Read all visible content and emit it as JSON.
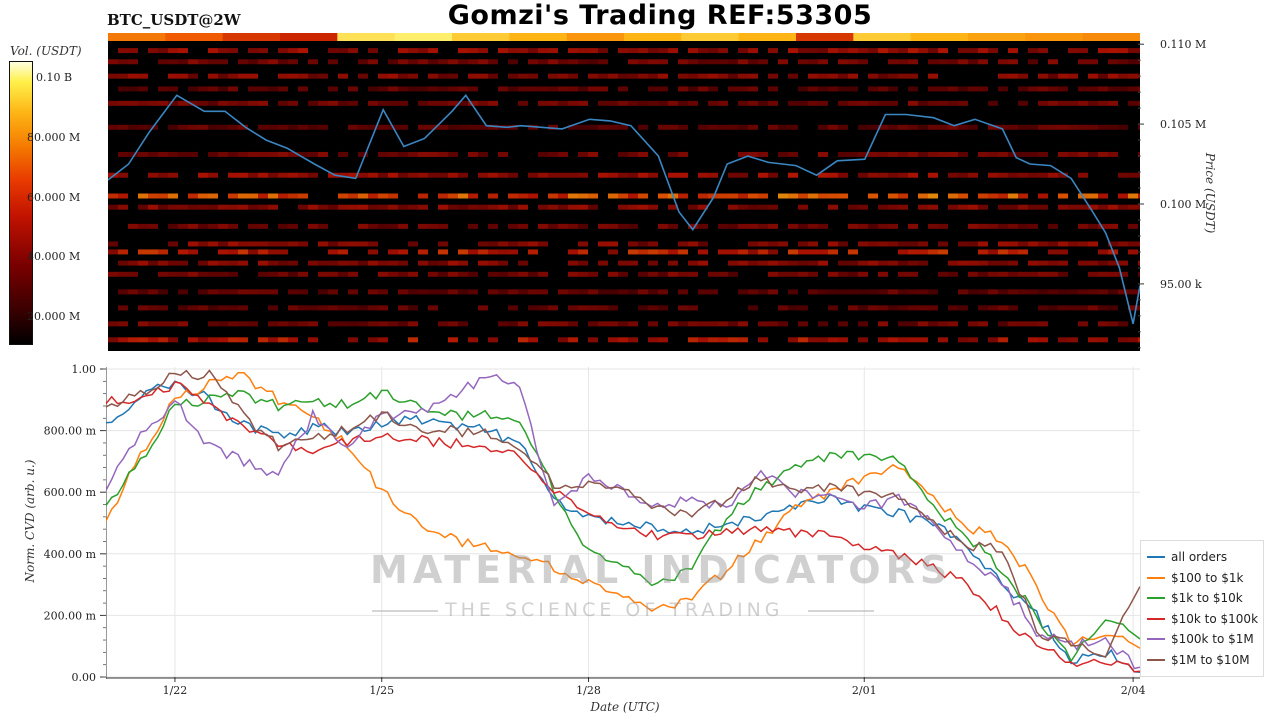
{
  "header": {
    "title": "Gomzi's Trading REF:53305",
    "symbol": "BTC_USDT@2W"
  },
  "colorbar": {
    "label": "Vol. (USDT)",
    "ticks": [
      "0.10 B",
      "80.000 M",
      "60.000 M",
      "40.000 M",
      "20.000 M"
    ]
  },
  "watermark": {
    "line1": "MATERIAL INDICATORS",
    "line2": "THE SCIENCE OF TRADING"
  },
  "colors": {
    "price_line": "#3a86c2",
    "heat_background": "#000000"
  },
  "chart_data": [
    {
      "type": "heatmap",
      "name": "orderbook-liquidity-heatmap",
      "ylabel": "Price (USDT)",
      "ylim": [
        90800,
        110200
      ],
      "yticks": [
        {
          "value": 110000,
          "label": "0.110 M"
        },
        {
          "value": 105000,
          "label": "0.105 M"
        },
        {
          "value": 100000,
          "label": "0.100 M"
        },
        {
          "value": 95000,
          "label": "95.00 k"
        }
      ],
      "colorbar_range": [
        0,
        105000000
      ],
      "price_series": {
        "x": [
          0,
          0.3,
          0.6,
          1.0,
          1.4,
          1.7,
          2.0,
          2.3,
          2.6,
          3.0,
          3.3,
          3.6,
          4.0,
          4.3,
          4.6,
          5.0,
          5.2,
          5.5,
          5.8,
          6.0,
          6.3,
          6.6,
          7.0,
          7.3,
          7.6,
          8.0,
          8.3,
          8.5,
          8.8,
          9.0,
          9.3,
          9.6,
          10.0,
          10.3,
          10.6,
          11.0,
          11.3,
          11.6,
          12.0,
          12.3,
          12.6,
          13.0,
          13.2,
          13.4,
          13.7,
          14.0,
          14.3,
          14.5,
          14.7,
          14.9,
          15.0
        ],
        "y": [
          101500,
          102500,
          104500,
          106800,
          105800,
          105800,
          104800,
          104000,
          103500,
          102500,
          101800,
          101600,
          105900,
          103600,
          104100,
          105800,
          106800,
          104900,
          104800,
          104900,
          104800,
          104700,
          105300,
          105200,
          104900,
          103000,
          99500,
          98400,
          100400,
          102500,
          103000,
          102600,
          102400,
          101800,
          102700,
          102800,
          105600,
          105600,
          105400,
          104900,
          105300,
          104700,
          102900,
          102500,
          102400,
          101600,
          99600,
          98200,
          96000,
          92500,
          94900
        ]
      },
      "liquidity_bands": [
        {
          "price": 109600,
          "intensity": 0.45
        },
        {
          "price": 108900,
          "intensity": 0.35
        },
        {
          "price": 108000,
          "intensity": 0.4
        },
        {
          "price": 107200,
          "intensity": 0.3
        },
        {
          "price": 106300,
          "intensity": 0.35
        },
        {
          "price": 104800,
          "intensity": 0.3
        },
        {
          "price": 103100,
          "intensity": 0.35
        },
        {
          "price": 101800,
          "intensity": 0.45
        },
        {
          "price": 100500,
          "intensity": 0.7
        },
        {
          "price": 99800,
          "intensity": 0.4
        },
        {
          "price": 98600,
          "intensity": 0.35
        },
        {
          "price": 97500,
          "intensity": 0.4
        },
        {
          "price": 97000,
          "intensity": 0.55
        },
        {
          "price": 96300,
          "intensity": 0.4
        },
        {
          "price": 95600,
          "intensity": 0.35
        },
        {
          "price": 94500,
          "intensity": 0.3
        },
        {
          "price": 93500,
          "intensity": 0.3
        },
        {
          "price": 92500,
          "intensity": 0.35
        },
        {
          "price": 91500,
          "intensity": 0.5
        }
      ],
      "top_volume_strip": [
        0.75,
        0.7,
        0.6,
        0.55,
        0.95,
        0.98,
        0.9,
        0.85,
        0.8,
        0.85,
        0.9,
        0.85,
        0.6,
        0.9,
        0.85,
        0.82,
        0.8,
        0.78
      ]
    },
    {
      "type": "line",
      "name": "normalized-cvd",
      "title": "",
      "xlabel": "Date (UTC)",
      "ylabel": "Norm. CVD (arb. u.)",
      "ylim": [
        0,
        1
      ],
      "xlim": [
        0,
        15
      ],
      "grid": true,
      "legend": "right",
      "yticks": [
        {
          "value": 0,
          "label": "0.00"
        },
        {
          "value": 0.2,
          "label": "200.00 m"
        },
        {
          "value": 0.4,
          "label": "400.00 m"
        },
        {
          "value": 0.6,
          "label": "600.00 m"
        },
        {
          "value": 0.8,
          "label": "800.00 m"
        },
        {
          "value": 1.0,
          "label": "1.00"
        }
      ],
      "xticks": [
        {
          "value": 1,
          "label": "1/22"
        },
        {
          "value": 4,
          "label": "1/25"
        },
        {
          "value": 7,
          "label": "1/28"
        },
        {
          "value": 11,
          "label": "2/01"
        },
        {
          "value": 14.9,
          "label": "2/04"
        }
      ],
      "x": [
        0,
        0.5,
        1,
        1.5,
        2,
        2.5,
        3,
        3.5,
        4,
        4.5,
        5,
        5.5,
        6,
        6.5,
        7,
        7.5,
        8,
        8.5,
        9,
        9.5,
        10,
        10.5,
        11,
        11.5,
        12,
        12.5,
        13,
        13.5,
        14,
        14.5,
        15
      ],
      "series": [
        {
          "name": "all orders",
          "color": "#1f77b4",
          "values": [
            0.83,
            0.91,
            0.96,
            0.9,
            0.82,
            0.78,
            0.81,
            0.8,
            0.82,
            0.84,
            0.82,
            0.8,
            0.76,
            0.58,
            0.52,
            0.5,
            0.48,
            0.47,
            0.5,
            0.52,
            0.55,
            0.58,
            0.55,
            0.53,
            0.5,
            0.42,
            0.3,
            0.2,
            0.05,
            0.08,
            0.02
          ]
        },
        {
          "name": "$100 to $1k",
          "color": "#ff7f0e",
          "values": [
            0.5,
            0.72,
            0.9,
            0.95,
            0.98,
            0.9,
            0.85,
            0.75,
            0.6,
            0.5,
            0.45,
            0.42,
            0.4,
            0.35,
            0.3,
            0.25,
            0.22,
            0.25,
            0.35,
            0.45,
            0.55,
            0.6,
            0.65,
            0.68,
            0.58,
            0.48,
            0.45,
            0.3,
            0.1,
            0.15,
            0.1
          ]
        },
        {
          "name": "$1k to $10k",
          "color": "#2ca02c",
          "values": [
            0.55,
            0.7,
            0.88,
            0.9,
            0.92,
            0.88,
            0.9,
            0.88,
            0.92,
            0.88,
            0.85,
            0.85,
            0.84,
            0.6,
            0.4,
            0.35,
            0.3,
            0.35,
            0.52,
            0.62,
            0.68,
            0.72,
            0.72,
            0.7,
            0.55,
            0.45,
            0.35,
            0.2,
            0.05,
            0.2,
            0.13
          ]
        },
        {
          "name": "$10k to $100k",
          "color": "#d62728",
          "values": [
            0.9,
            0.9,
            0.95,
            0.88,
            0.82,
            0.76,
            0.74,
            0.76,
            0.78,
            0.77,
            0.76,
            0.75,
            0.72,
            0.6,
            0.52,
            0.48,
            0.46,
            0.45,
            0.48,
            0.48,
            0.47,
            0.46,
            0.42,
            0.4,
            0.35,
            0.3,
            0.2,
            0.1,
            0.05,
            0.05,
            0.02
          ]
        },
        {
          "name": "$100k to $1M",
          "color": "#9467bd",
          "values": [
            0.62,
            0.78,
            0.9,
            0.75,
            0.7,
            0.65,
            0.85,
            0.75,
            0.85,
            0.86,
            0.9,
            0.98,
            0.95,
            0.55,
            0.65,
            0.6,
            0.55,
            0.58,
            0.55,
            0.66,
            0.6,
            0.58,
            0.55,
            0.58,
            0.5,
            0.38,
            0.3,
            0.15,
            0.1,
            0.12,
            0.02
          ]
        },
        {
          "name": "$1M to $10M",
          "color": "#8c564b",
          "values": [
            0.87,
            0.92,
            0.98,
            0.98,
            0.85,
            0.75,
            0.78,
            0.8,
            0.85,
            0.8,
            0.8,
            0.79,
            0.75,
            0.62,
            0.62,
            0.6,
            0.55,
            0.52,
            0.58,
            0.65,
            0.6,
            0.62,
            0.6,
            0.58,
            0.5,
            0.42,
            0.42,
            0.15,
            0.1,
            0.08,
            0.3
          ]
        }
      ]
    }
  ]
}
